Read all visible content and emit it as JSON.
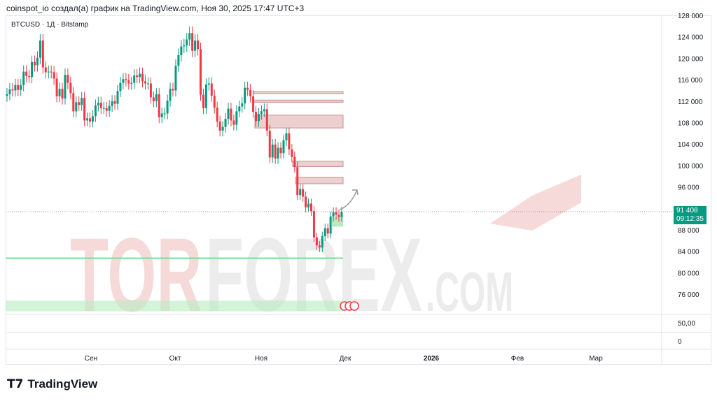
{
  "header": "coinspot_io создал(а) график на TradingView.com, Ноя 30, 2025 17:47 UTC+3",
  "symbol": "BTCUSD · 1Д · Bitstamp",
  "watermark": {
    "left": "TOR",
    "right": "FOREX",
    ".com": ".COM"
  },
  "brand": "TradingView",
  "last_price": "91 408",
  "countdown": "09:12:35",
  "colors": {
    "up": "#089981",
    "down": "#f23645",
    "zone_red": "#e8c4c4",
    "zone_green": "#b7ecc0"
  },
  "price_ticks": [
    128000,
    124000,
    120000,
    116000,
    112000,
    108000,
    104000,
    100000,
    96000,
    88000,
    84000,
    80000,
    76000
  ],
  "price_tick_labels": [
    "128 000",
    "124 000",
    "120 000",
    "116 000",
    "112 000",
    "108 000",
    "104 000",
    "100 000",
    "96 000",
    "88 000",
    "84 000",
    "80 000",
    "76 000"
  ],
  "indicator_ticks": [
    "50,00",
    "0"
  ],
  "time_labels": [
    "Сен",
    "Окт",
    "Ноя",
    "Дек",
    "2026",
    "Фев",
    "Мар"
  ],
  "chart_data": {
    "type": "candlestick",
    "start_date": "2025-08-01",
    "interval": "1D",
    "closes": [
      113300,
      114200,
      114000,
      115000,
      114100,
      115000,
      117500,
      116700,
      116500,
      119300,
      118700,
      120100,
      123300,
      118300,
      117400,
      117500,
      117400,
      116200,
      112900,
      114300,
      112500,
      116900,
      115400,
      113500,
      110100,
      111800,
      111300,
      112600,
      108400,
      108800,
      108200,
      109200,
      111200,
      111700,
      110700,
      110700,
      110200,
      111100,
      112000,
      111500,
      113900,
      115400,
      116100,
      115900,
      115300,
      115400,
      116800,
      116500,
      117100,
      115700,
      115300,
      115300,
      112700,
      112000,
      113300,
      109000,
      109700,
      109700,
      112100,
      114300,
      114000,
      118600,
      120600,
      122200,
      122400,
      123500,
      124700,
      121400,
      123300,
      121700,
      113200,
      110700,
      115100,
      115300,
      113000,
      110800,
      108200,
      106500,
      107200,
      108700,
      110600,
      108400,
      107600,
      110100,
      111000,
      111600,
      114500,
      114100,
      112900,
      110000,
      108300,
      109600,
      110100,
      110500,
      106500,
      101500,
      103900,
      101300,
      103300,
      102300,
      104700,
      106000,
      103000,
      101600,
      99700,
      94500,
      95600,
      94200,
      92200,
      92900,
      91500,
      86600,
      85100,
      84700,
      86800,
      88300,
      87300,
      90500,
      91300,
      90800,
      90400,
      91400
    ],
    "zones_red": [
      [
        113400,
        113800
      ],
      [
        111800,
        112200
      ],
      [
        107000,
        109400
      ],
      [
        99800,
        100800
      ],
      [
        96600,
        97800
      ]
    ],
    "zone_green": [
      88600,
      90400
    ],
    "level_green": 82700,
    "band_green": [
      72800,
      74800
    ]
  }
}
